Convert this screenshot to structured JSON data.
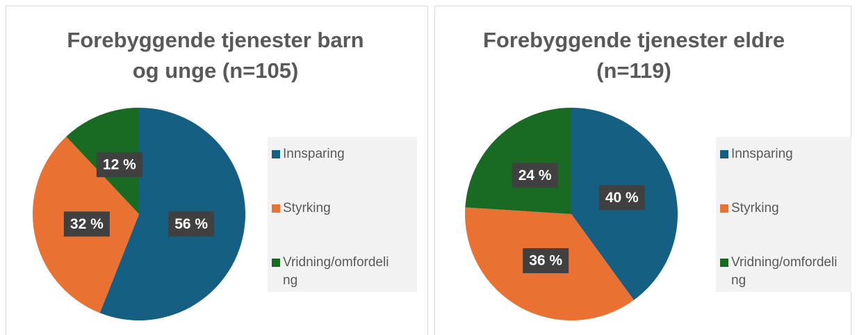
{
  "chart_data": [
    {
      "type": "pie",
      "title": "Forebyggende tjenester barn og unge (n=105)",
      "categories": [
        "Innsparing",
        "Styrking",
        "Vridning/omfordeling"
      ],
      "values": [
        56,
        32,
        12
      ],
      "value_labels": [
        "56 %",
        "32 %",
        "12 %"
      ],
      "colors": [
        "#156082",
        "#e97132",
        "#196b24"
      ],
      "legend": "right"
    },
    {
      "type": "pie",
      "title": "Forebyggende tjenester eldre (n=119)",
      "categories": [
        "Innsparing",
        "Styrking",
        "Vridning/omfordeling"
      ],
      "values": [
        40,
        36,
        24
      ],
      "value_labels": [
        "40 %",
        "36 %",
        "24 %"
      ],
      "colors": [
        "#156082",
        "#e97132",
        "#196b24"
      ],
      "legend": "right"
    }
  ]
}
